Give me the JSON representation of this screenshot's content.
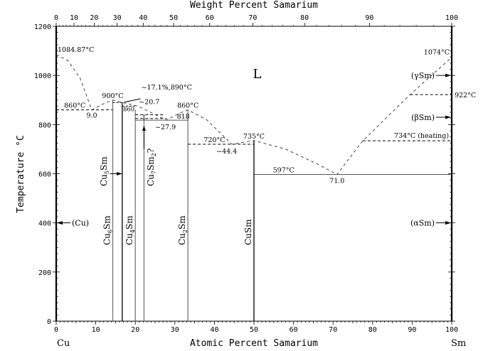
{
  "title": "Weight Percent Samarium",
  "x_axis_label": "Atomic Percent Samarium",
  "y_axis_label": "Temperature °C",
  "left_element": "Cu",
  "right_element": "Sm",
  "chart_data": {
    "type": "phase-diagram",
    "system": "Cu-Sm",
    "xlim": [
      0,
      100
    ],
    "ylim": [
      0,
      1200
    ],
    "x_ticks": [
      0,
      10,
      20,
      30,
      40,
      50,
      60,
      70,
      80,
      90,
      100
    ],
    "y_ticks": [
      0,
      200,
      400,
      600,
      800,
      1000,
      1200
    ],
    "weight_percent_ticks": [
      {
        "label": "0",
        "at": 0
      },
      {
        "label": "10",
        "at": 4.5
      },
      {
        "label": "20",
        "at": 9.6
      },
      {
        "label": "30",
        "at": 15.4
      },
      {
        "label": "40",
        "at": 22.0
      },
      {
        "label": "50",
        "at": 29.7
      },
      {
        "label": "60",
        "at": 38.8
      },
      {
        "label": "70",
        "at": 49.7
      },
      {
        "label": "80",
        "at": 62.8
      },
      {
        "label": "90",
        "at": 79.2
      },
      {
        "label": "100",
        "at": 100
      }
    ],
    "compounds": [
      {
        "name": "Cu6Sm",
        "base": "Cu",
        "sub": "6",
        "tail": "Sm",
        "x": 14.3,
        "top": 900
      },
      {
        "name": "Cu5Sm",
        "base": "Cu",
        "sub": "5",
        "tail": "Sm",
        "x": 16.7,
        "top": 890
      },
      {
        "name": "Cu4Sm",
        "base": "Cu",
        "sub": "4",
        "tail": "Sm",
        "x": 20.0,
        "top": 860
      },
      {
        "name": "Cu7Sm2?",
        "base": "Cu",
        "sub": "7",
        "tail": "Sm",
        "sub2": "2",
        "suffix": "?",
        "x": 22.2,
        "top": 840
      },
      {
        "name": "Cu2Sm",
        "base": "Cu",
        "sub": "2",
        "tail": "Sm",
        "x": 33.3,
        "top": 860
      },
      {
        "name": "CuSm",
        "base": "Cu",
        "sub": "",
        "tail": "Sm",
        "x": 50.0,
        "top": 735
      }
    ],
    "isotherms": [
      {
        "label": "860°C",
        "T": 860,
        "x1": 0,
        "x2": 14.3,
        "style": "dashed"
      },
      {
        "label": "818",
        "T": 818,
        "x1": 20.0,
        "x2": 33.3,
        "style": "solid"
      },
      {
        "label": "720°C",
        "T": 720,
        "x1": 33.3,
        "x2": 50.0,
        "style": "dashed"
      },
      {
        "label": "597°C",
        "T": 597,
        "x1": 50.0,
        "x2": 100,
        "style": "solid"
      },
      {
        "label": "734°C (heating)",
        "T": 734,
        "x1": 77.5,
        "x2": 100,
        "style": "dashed"
      },
      {
        "label": "922°C",
        "T": 922,
        "x1": 89.5,
        "x2": 100,
        "style": "dashed"
      }
    ],
    "liquidus": [
      [
        [
          0,
          1084.87
        ],
        [
          3,
          1060
        ],
        [
          6,
          990
        ],
        [
          9.0,
          860
        ],
        [
          12,
          885
        ],
        [
          14.3,
          900
        ],
        [
          16.7,
          890
        ],
        [
          20.7,
          875
        ],
        [
          27.9,
          818
        ],
        [
          31,
          845
        ],
        [
          33.3,
          860
        ],
        [
          38,
          820
        ],
        [
          44.4,
          720
        ],
        [
          50,
          735
        ],
        [
          58,
          700
        ],
        [
          66,
          640
        ],
        [
          71.0,
          597
        ],
        [
          77.5,
          734
        ],
        [
          89.5,
          922
        ],
        [
          100,
          1074
        ]
      ]
    ],
    "annotations": [
      {
        "text": "1084.87°C",
        "x": 0,
        "T": 1084.87
      },
      {
        "text": "1074°C",
        "x": 100,
        "T": 1074
      },
      {
        "text": "9.0",
        "x": 9.0,
        "T": 860
      },
      {
        "text": "900°C",
        "x": 14.3,
        "T": 900
      },
      {
        "text": "~17.1%,890°C",
        "x": 17.1,
        "T": 890
      },
      {
        "text": "~20.7",
        "x": 20.7,
        "T": 875
      },
      {
        "text": "860",
        "x": 20.0,
        "T": 860
      },
      {
        "text": "~27.9",
        "x": 27.9,
        "T": 818
      },
      {
        "text": "860°C",
        "x": 33.3,
        "T": 860
      },
      {
        "text": "735°C",
        "x": 50,
        "T": 735
      },
      {
        "text": "~44.4",
        "x": 44.4,
        "T": 720
      },
      {
        "text": "71.0",
        "x": 71.0,
        "T": 597
      },
      {
        "text": "L",
        "region": "liquid"
      }
    ],
    "phase_labels": [
      {
        "text": "(Cu)",
        "side": "left",
        "T": 400
      },
      {
        "text": "(γSm)",
        "side": "right",
        "T": 1000
      },
      {
        "text": "(βSm)",
        "side": "right",
        "T": 830
      },
      {
        "text": "(αSm)",
        "side": "right",
        "T": 400
      }
    ]
  }
}
